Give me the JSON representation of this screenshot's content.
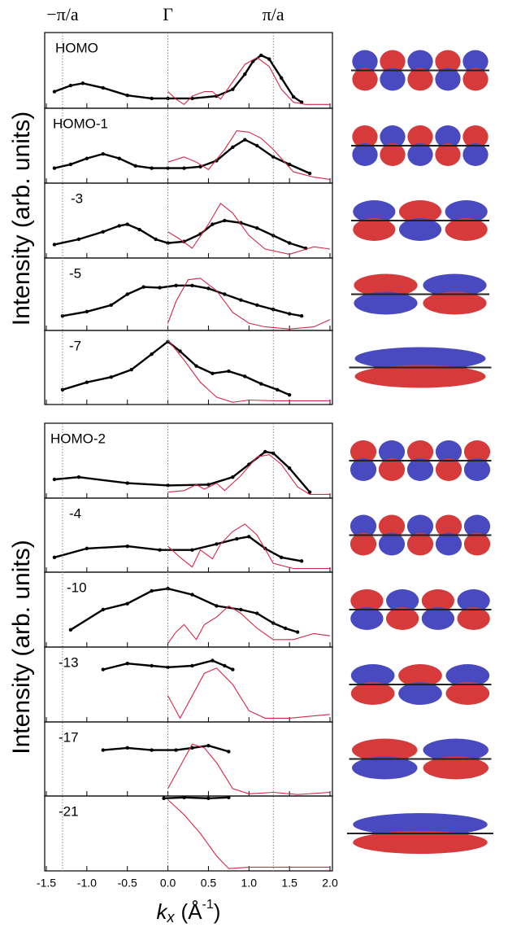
{
  "top_labels": [
    {
      "value": -1.3,
      "label": "−π/a"
    },
    {
      "value": 0,
      "label": "Γ"
    },
    {
      "value": 1.3,
      "label": "π/a"
    }
  ],
  "ylabel": "Intensity  (arb. units)",
  "xlabel": [
    "k",
    "x",
    "(Å",
    "-1",
    ")"
  ],
  "chart_data": [
    {
      "type": "line",
      "annotation": "HOMO",
      "xlim": [
        -1.52,
        2.03
      ],
      "ylim": [
        0,
        1
      ],
      "series": [
        {
          "color": "#000000",
          "marker": true,
          "x": [
            -1.4,
            -1.2,
            -1.05,
            -0.8,
            -0.5,
            -0.2,
            0,
            0.3,
            0.6,
            0.8,
            0.95,
            1.05,
            1.15,
            1.25,
            1.4,
            1.55,
            1.65
          ],
          "values": [
            0.22,
            0.3,
            0.33,
            0.27,
            0.17,
            0.13,
            0.13,
            0.13,
            0.16,
            0.25,
            0.45,
            0.62,
            0.7,
            0.65,
            0.4,
            0.15,
            0.08
          ]
        },
        {
          "color": "#d6264a",
          "marker": false,
          "x": [
            0,
            0.1,
            0.2,
            0.3,
            0.45,
            0.55,
            0.65,
            0.8,
            0.95,
            1.1,
            1.25,
            1.4,
            1.55,
            1.7,
            1.9,
            2.0
          ],
          "values": [
            0.22,
            0.12,
            0.05,
            0.16,
            0.22,
            0.22,
            0.12,
            0.35,
            0.58,
            0.67,
            0.55,
            0.25,
            0.08,
            0.05,
            0.05,
            0.05
          ]
        }
      ]
    },
    {
      "type": "line",
      "annotation": "HOMO-1",
      "xlim": [
        -1.52,
        2.03
      ],
      "ylim": [
        0,
        1
      ],
      "series": [
        {
          "color": "#000000",
          "marker": true,
          "x": [
            -1.4,
            -1.2,
            -1.0,
            -0.8,
            -0.6,
            -0.4,
            -0.2,
            0,
            0.2,
            0.4,
            0.6,
            0.8,
            0.95,
            1.1,
            1.3,
            1.5,
            1.75
          ],
          "values": [
            0.2,
            0.25,
            0.33,
            0.39,
            0.33,
            0.23,
            0.2,
            0.2,
            0.2,
            0.22,
            0.3,
            0.48,
            0.58,
            0.5,
            0.35,
            0.25,
            0.13
          ]
        },
        {
          "color": "#d6264a",
          "marker": false,
          "x": [
            0,
            0.2,
            0.35,
            0.5,
            0.7,
            0.85,
            1.0,
            1.15,
            1.3,
            1.55,
            1.8,
            2.0
          ],
          "values": [
            0.28,
            0.35,
            0.28,
            0.18,
            0.45,
            0.7,
            0.68,
            0.6,
            0.45,
            0.15,
            0.08,
            0.05
          ]
        }
      ]
    },
    {
      "type": "line",
      "annotation": "-3",
      "xlim": [
        -1.52,
        2.03
      ],
      "ylim": [
        0,
        1
      ],
      "series": [
        {
          "color": "#000000",
          "marker": true,
          "x": [
            -1.4,
            -1.1,
            -0.8,
            -0.6,
            -0.5,
            -0.35,
            -0.15,
            0,
            0.2,
            0.4,
            0.55,
            0.7,
            0.9,
            1.1,
            1.3,
            1.5,
            1.7
          ],
          "values": [
            0.18,
            0.25,
            0.35,
            0.43,
            0.45,
            0.38,
            0.25,
            0.2,
            0.22,
            0.32,
            0.45,
            0.5,
            0.47,
            0.4,
            0.3,
            0.2,
            0.13
          ]
        },
        {
          "color": "#d6264a",
          "marker": false,
          "x": [
            0,
            0.15,
            0.3,
            0.5,
            0.65,
            0.8,
            1.0,
            1.2,
            1.5,
            1.8,
            2.0
          ],
          "values": [
            0.35,
            0.25,
            0.13,
            0.45,
            0.73,
            0.6,
            0.3,
            0.12,
            0.05,
            0.15,
            0.12
          ]
        }
      ]
    },
    {
      "type": "line",
      "annotation": "-5",
      "xlim": [
        -1.52,
        2.03
      ],
      "ylim": [
        0,
        1
      ],
      "series": [
        {
          "color": "#000000",
          "marker": true,
          "x": [
            -1.3,
            -1.0,
            -0.7,
            -0.5,
            -0.3,
            -0.1,
            0.1,
            0.3,
            0.5,
            0.7,
            0.9,
            1.1,
            1.3,
            1.5,
            1.65
          ],
          "values": [
            0.2,
            0.26,
            0.35,
            0.5,
            0.6,
            0.59,
            0.62,
            0.62,
            0.58,
            0.5,
            0.42,
            0.35,
            0.29,
            0.23,
            0.2
          ]
        },
        {
          "color": "#d6264a",
          "marker": false,
          "x": [
            0,
            0.1,
            0.25,
            0.4,
            0.6,
            0.8,
            1.0,
            1.2,
            1.5,
            1.8,
            2.0
          ],
          "values": [
            0.1,
            0.4,
            0.7,
            0.72,
            0.55,
            0.25,
            0.1,
            0.05,
            0.02,
            0.05,
            0.15
          ]
        }
      ]
    },
    {
      "type": "line",
      "annotation": "-7",
      "xlim": [
        -1.52,
        2.03
      ],
      "ylim": [
        0,
        1
      ],
      "series": [
        {
          "color": "#000000",
          "marker": true,
          "x": [
            -1.3,
            -1.0,
            -0.7,
            -0.45,
            -0.2,
            0,
            0.15,
            0.35,
            0.55,
            0.75,
            0.95,
            1.15,
            1.35,
            1.5
          ],
          "values": [
            0.2,
            0.3,
            0.37,
            0.47,
            0.68,
            0.85,
            0.72,
            0.52,
            0.42,
            0.45,
            0.38,
            0.28,
            0.2,
            0.13
          ]
        },
        {
          "color": "#d6264a",
          "marker": false,
          "x": [
            0,
            0.2,
            0.4,
            0.6,
            0.8,
            1.0,
            1.3,
            1.6,
            2.0
          ],
          "values": [
            0.87,
            0.6,
            0.3,
            0.1,
            0.03,
            0.06,
            0.05,
            0.05,
            0.05
          ]
        }
      ]
    },
    {
      "type": "line",
      "annotation": "HOMO-2",
      "xlim": [
        -1.52,
        2.03
      ],
      "ylim": [
        0,
        1
      ],
      "series": [
        {
          "color": "#000000",
          "marker": true,
          "x": [
            -1.4,
            -1.1,
            -0.5,
            0,
            0.5,
            0.8,
            1.0,
            1.2,
            1.3,
            1.5,
            1.75
          ],
          "values": [
            0.25,
            0.28,
            0.2,
            0.17,
            0.18,
            0.28,
            0.45,
            0.62,
            0.6,
            0.4,
            0.08
          ]
        },
        {
          "color": "#d6264a",
          "marker": false,
          "x": [
            0,
            0.2,
            0.35,
            0.45,
            0.6,
            0.7,
            0.9,
            1.1,
            1.25,
            1.4,
            1.6,
            1.75,
            2.0
          ],
          "values": [
            0.08,
            0.1,
            0.18,
            0.12,
            0.2,
            0.1,
            0.3,
            0.55,
            0.58,
            0.45,
            0.15,
            0.05,
            0.05
          ]
        }
      ]
    },
    {
      "type": "line",
      "annotation": "-4",
      "xlim": [
        -1.52,
        2.03
      ],
      "ylim": [
        0,
        1
      ],
      "series": [
        {
          "color": "#000000",
          "marker": true,
          "x": [
            -1.4,
            -1.0,
            -0.5,
            -0.1,
            0.3,
            0.6,
            0.85,
            1.0,
            1.2,
            1.4,
            1.65
          ],
          "values": [
            0.2,
            0.32,
            0.35,
            0.3,
            0.3,
            0.38,
            0.45,
            0.48,
            0.32,
            0.2,
            0.15
          ]
        },
        {
          "color": "#d6264a",
          "marker": false,
          "x": [
            0,
            0.15,
            0.3,
            0.4,
            0.55,
            0.65,
            0.8,
            0.95,
            1.1,
            1.3,
            1.55,
            2.0
          ],
          "values": [
            0.35,
            0.2,
            0.07,
            0.3,
            0.18,
            0.38,
            0.55,
            0.65,
            0.5,
            0.12,
            0.05,
            0.05
          ]
        }
      ]
    },
    {
      "type": "line",
      "annotation": "-10",
      "xlim": [
        -1.52,
        2.03
      ],
      "ylim": [
        0,
        1
      ],
      "series": [
        {
          "color": "#000000",
          "marker": true,
          "x": [
            -1.2,
            -0.8,
            -0.5,
            -0.2,
            0,
            0.3,
            0.6,
            0.9,
            1.1,
            1.3,
            1.45,
            1.6
          ],
          "values": [
            0.23,
            0.5,
            0.58,
            0.75,
            0.78,
            0.7,
            0.55,
            0.5,
            0.45,
            0.32,
            0.25,
            0.2
          ]
        },
        {
          "color": "#d6264a",
          "marker": false,
          "x": [
            0,
            0.1,
            0.2,
            0.35,
            0.45,
            0.6,
            0.75,
            0.9,
            1.1,
            1.3,
            1.55,
            1.8,
            2.0
          ],
          "values": [
            0.05,
            0.2,
            0.3,
            0.1,
            0.3,
            0.4,
            0.55,
            0.45,
            0.25,
            0.1,
            0.1,
            0.18,
            0.15
          ]
        }
      ]
    },
    {
      "type": "line",
      "annotation": "-13",
      "xlim": [
        -1.52,
        2.03
      ],
      "ylim": [
        0,
        1
      ],
      "series": [
        {
          "color": "#000000",
          "marker": true,
          "x": [
            -0.8,
            -0.5,
            -0.2,
            0,
            0.3,
            0.55,
            0.7,
            0.8
          ],
          "values": [
            0.7,
            0.78,
            0.75,
            0.73,
            0.75,
            0.82,
            0.75,
            0.7
          ]
        },
        {
          "color": "#d6264a",
          "marker": false,
          "x": [
            0,
            0.15,
            0.3,
            0.45,
            0.6,
            0.8,
            1.0,
            1.2,
            1.5,
            1.8,
            2.0
          ],
          "values": [
            0.35,
            0.05,
            0.35,
            0.65,
            0.72,
            0.5,
            0.15,
            0.05,
            0.05,
            0.08,
            0.1
          ]
        }
      ]
    },
    {
      "type": "line",
      "annotation": "-17",
      "xlim": [
        -1.52,
        2.03
      ],
      "ylim": [
        0,
        1
      ],
      "series": [
        {
          "color": "#000000",
          "marker": true,
          "x": [
            -0.8,
            -0.5,
            -0.2,
            0.1,
            0.3,
            0.5,
            0.75
          ],
          "values": [
            0.62,
            0.65,
            0.62,
            0.62,
            0.65,
            0.68,
            0.6
          ]
        },
        {
          "color": "#d6264a",
          "marker": false,
          "x": [
            0,
            0.15,
            0.3,
            0.45,
            0.6,
            0.8,
            1.0,
            1.3,
            1.6,
            2.0
          ],
          "values": [
            0.1,
            0.4,
            0.7,
            0.65,
            0.45,
            0.1,
            0.03,
            0.05,
            0.02,
            0.05
          ]
        }
      ]
    },
    {
      "type": "line",
      "annotation": "-21",
      "xlim": [
        -1.52,
        2.03
      ],
      "ylim": [
        0,
        1
      ],
      "xticks": [
        -1.5,
        {
          "value": -1,
          "label": "-1.0"
        },
        -0.5,
        {
          "value": 0,
          "label": "0.0"
        },
        0.5,
        {
          "value": 1,
          "label": "1.0"
        },
        1.5,
        {
          "value": 2,
          "label": "2.0"
        }
      ],
      "series": [
        {
          "color": "#000000",
          "marker": true,
          "x": [
            -0.05,
            0.2,
            0.5,
            0.75
          ],
          "values": [
            0.97,
            0.98,
            0.97,
            0.98
          ]
        },
        {
          "color": "#d6264a",
          "marker": false,
          "x": [
            0,
            0.2,
            0.4,
            0.6,
            0.75,
            1.0,
            1.5,
            2.0
          ],
          "values": [
            0.95,
            0.75,
            0.5,
            0.2,
            0.03,
            0.05,
            0.05,
            0.05
          ]
        }
      ]
    }
  ]
}
